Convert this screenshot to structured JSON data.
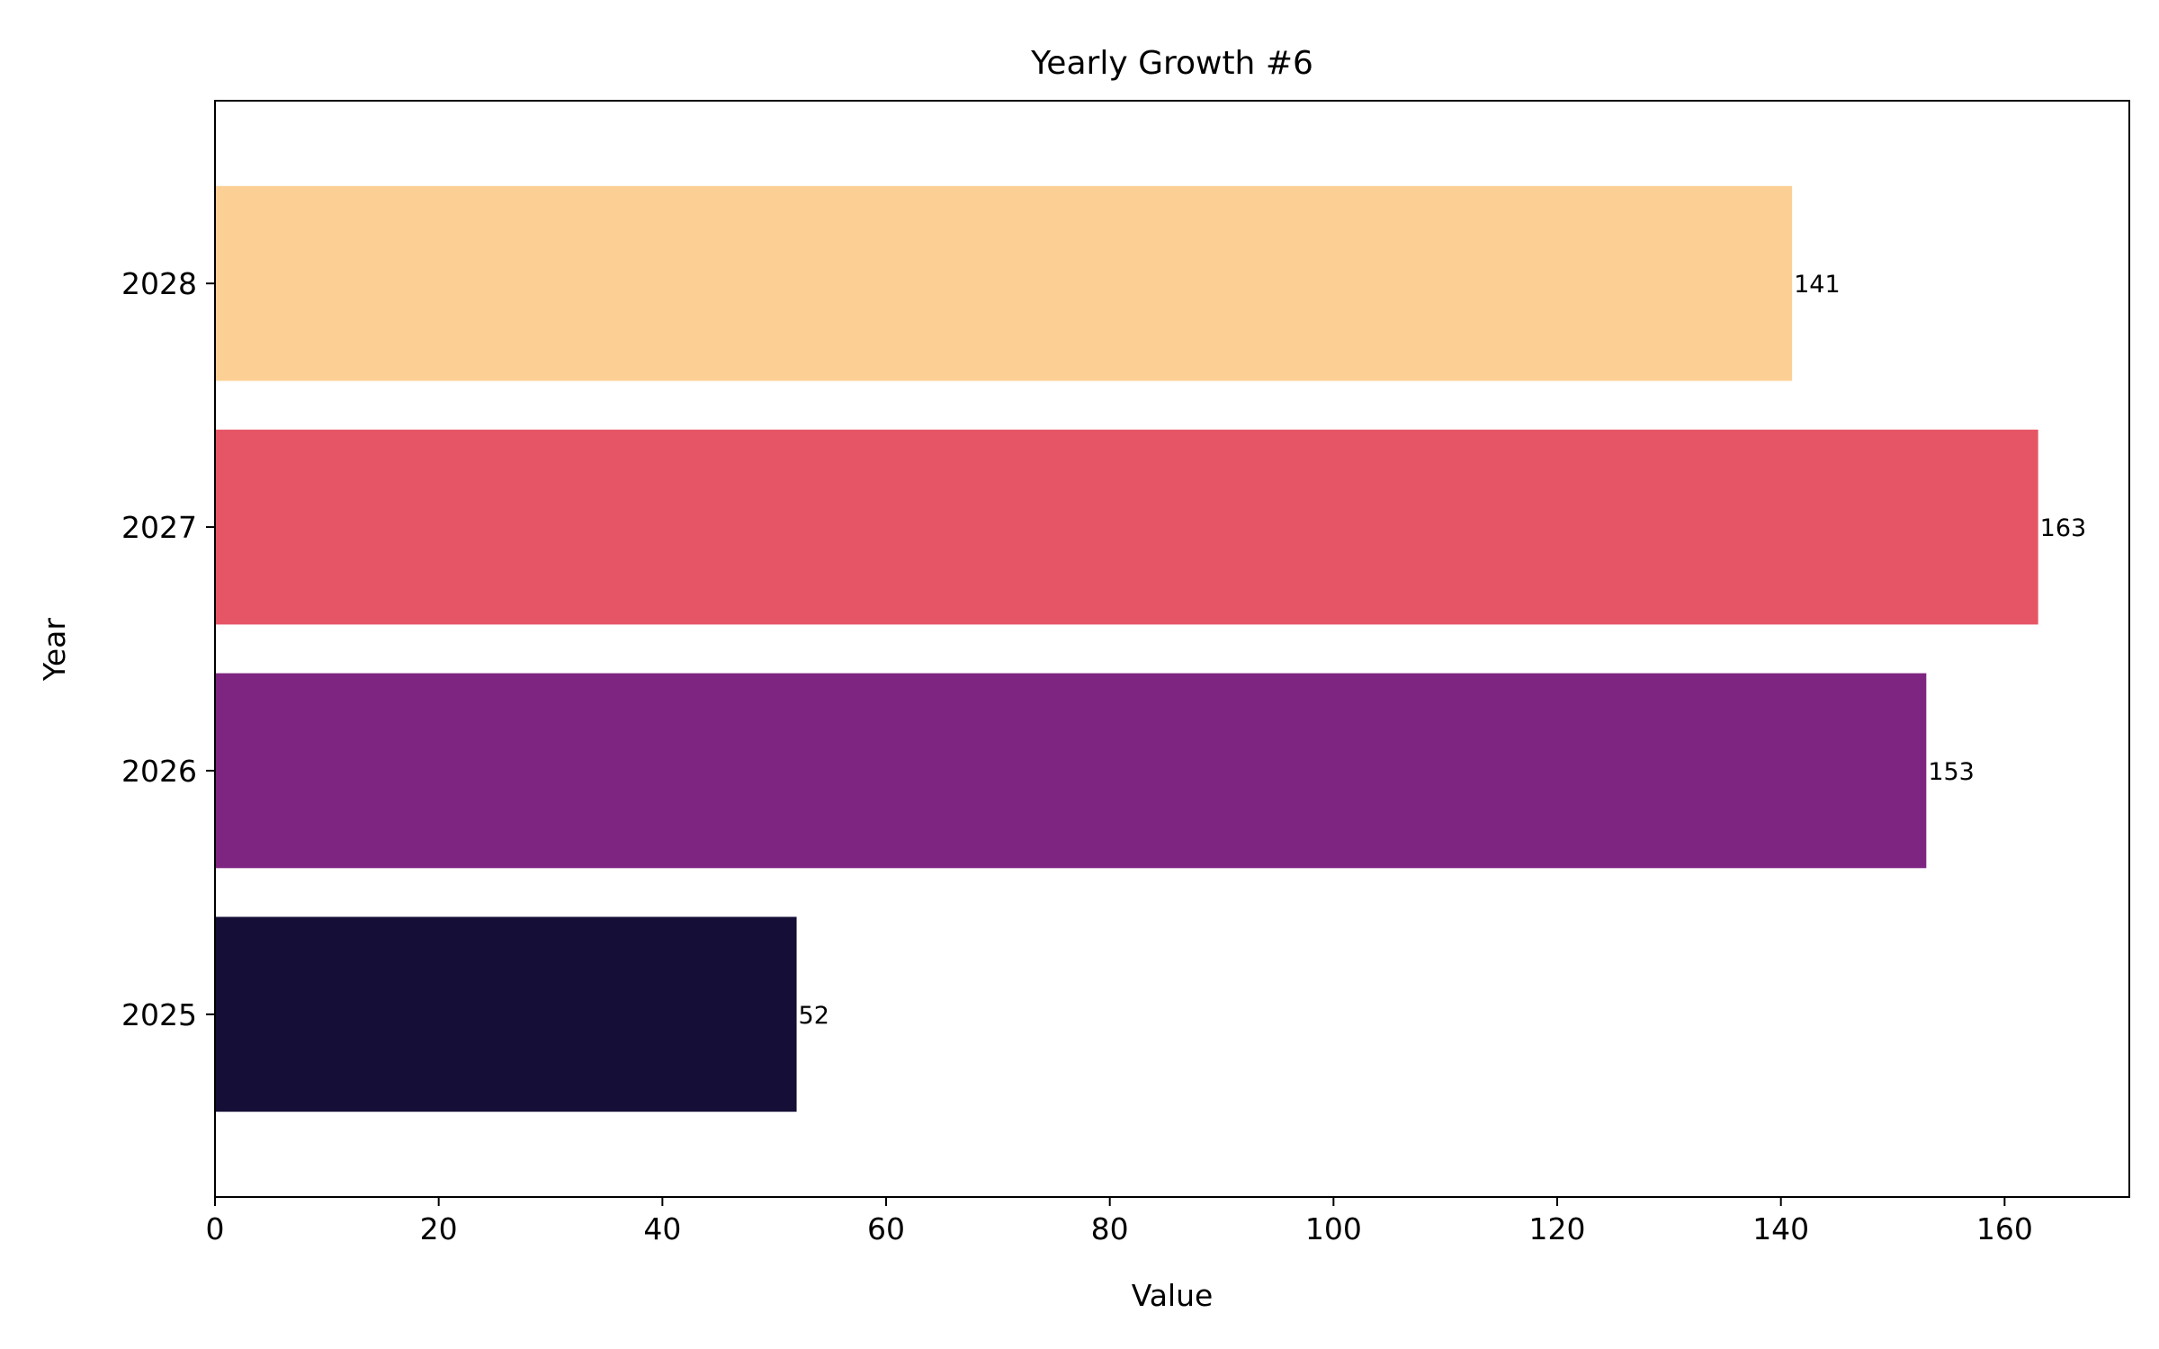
{
  "chart_data": {
    "type": "bar",
    "orientation": "horizontal",
    "title": "Yearly Growth #6",
    "xlabel": "Value",
    "ylabel": "Year",
    "categories": [
      "2025",
      "2026",
      "2027",
      "2028"
    ],
    "values": [
      52,
      153,
      163,
      141
    ],
    "data_labels": [
      "52",
      "153",
      "163",
      "141"
    ],
    "colors": [
      "#150e36",
      "#7e2481",
      "#e65565",
      "#fcd095"
    ],
    "xlim": [
      0,
      171.15
    ],
    "xticks": [
      0,
      20,
      40,
      60,
      80,
      100,
      120,
      140,
      160
    ],
    "xtick_labels": [
      "0",
      "20",
      "40",
      "60",
      "80",
      "100",
      "120",
      "140",
      "160"
    ],
    "grid": false,
    "legend": "none"
  }
}
